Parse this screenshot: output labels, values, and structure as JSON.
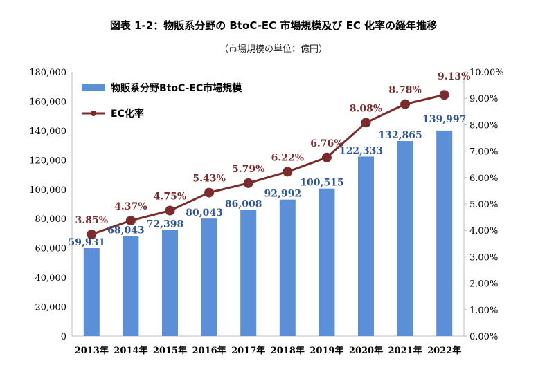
{
  "chart_data": {
    "type": "bar",
    "title": "図表 1-2：物販系分野の BtoC-EC 市場規模及び EC 化率の経年推移",
    "subtitle": "（市場規模の単位：億円）",
    "categories": [
      "2013年",
      "2014年",
      "2015年",
      "2016年",
      "2017年",
      "2018年",
      "2019年",
      "2020年",
      "2021年",
      "2022年"
    ],
    "series": [
      {
        "name": "物販系分野BtoC-EC市場規模",
        "type": "bar",
        "axis": "left",
        "values": [
          59931,
          68043,
          72398,
          80043,
          86008,
          92992,
          100515,
          122333,
          132865,
          139997
        ],
        "labels": [
          "59,931",
          "68,043",
          "72,398",
          "80,043",
          "86,008",
          "92,992",
          "100,515",
          "122,333",
          "132,865",
          "139,997"
        ],
        "color": "#5b8fd8"
      },
      {
        "name": "EC化率",
        "type": "line",
        "axis": "right",
        "values": [
          3.85,
          4.37,
          4.75,
          5.43,
          5.79,
          6.22,
          6.76,
          8.08,
          8.78,
          9.13
        ],
        "labels": [
          "3.85%",
          "4.37%",
          "4.75%",
          "5.43%",
          "5.79%",
          "6.22%",
          "6.76%",
          "8.08%",
          "8.78%",
          "9.13%"
        ],
        "color": "#7b2b2b"
      }
    ],
    "ylim_left": [
      0,
      180000
    ],
    "yticks_left": [
      "0",
      "20,000",
      "40,000",
      "60,000",
      "80,000",
      "100,000",
      "120,000",
      "140,000",
      "160,000",
      "180,000"
    ],
    "ylim_right": [
      0,
      10
    ],
    "yticks_right": [
      "0.00%",
      "1.00%",
      "2.00%",
      "3.00%",
      "4.00%",
      "5.00%",
      "6.00%",
      "7.00%",
      "8.00%",
      "9.00%",
      "10.00%"
    ],
    "legend_position": "top-left",
    "grid": false
  }
}
